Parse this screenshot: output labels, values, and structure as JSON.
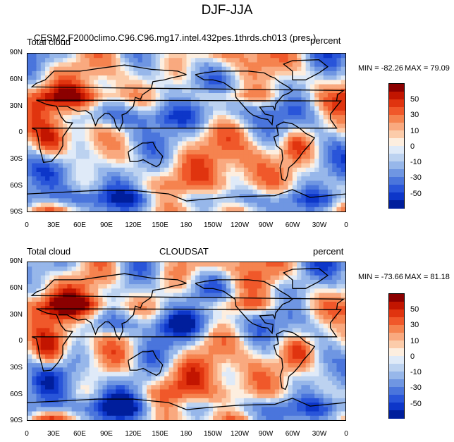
{
  "figure": {
    "title": "DJF-JJA"
  },
  "panels": [
    {
      "left_label": "Total cloud",
      "center_label": "CESM2.F2000climo.C96.C96.mg17.intel.432pes.1thrds.ch013 (pres.)",
      "right_label": "percent",
      "min_label": "MIN = -82.26",
      "max_label": "MAX =  79.09",
      "variant": "model"
    },
    {
      "left_label": "Total cloud",
      "center_label": "CLOUDSAT",
      "right_label": "percent",
      "min_label": "MIN = -73.66",
      "max_label": "MAX =  81.18",
      "variant": "obs"
    }
  ],
  "axes": {
    "lat_ticks": [
      "90N",
      "60N",
      "30N",
      "0",
      "30S",
      "60S",
      "90S"
    ],
    "lon_ticks": [
      "0",
      "30E",
      "60E",
      "90E",
      "120E",
      "150E",
      "180",
      "150W",
      "120W",
      "90W",
      "60W",
      "30W",
      "0"
    ]
  },
  "colorbar": {
    "tick_labels": [
      "50",
      "30",
      "10",
      "0",
      "-10",
      "-30",
      "-50"
    ],
    "colors": [
      "#8b0000",
      "#c21500",
      "#e0340f",
      "#f0582a",
      "#f5834f",
      "#f9a97f",
      "#fcccaa",
      "#fdeedf",
      "#dfeaf8",
      "#bcd2f0",
      "#97b7ea",
      "#6f96e2",
      "#4a75dc",
      "#2955d9",
      "#0d36c9",
      "#001e9c"
    ]
  }
}
